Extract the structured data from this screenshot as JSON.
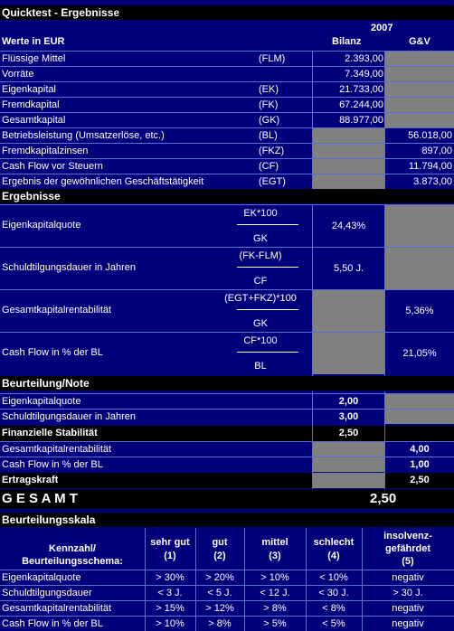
{
  "title": "Quicktest - Ergebnisse",
  "header": {
    "year": "2007",
    "werte": "Werte in EUR",
    "col_bilanz": "Bilanz",
    "col_guv": "G&V"
  },
  "rows": [
    {
      "label": "Flüssige Mittel",
      "abbr": "(FLM)",
      "bilanz": "2.393,00",
      "guv": ""
    },
    {
      "label": "Vorräte",
      "abbr": "",
      "bilanz": "7.349,00",
      "guv": ""
    },
    {
      "label": "Eigenkapital",
      "abbr": "(EK)",
      "bilanz": "21.733,00",
      "guv": ""
    },
    {
      "label": "Fremdkapital",
      "abbr": "(FK)",
      "bilanz": "67.244,00",
      "guv": ""
    },
    {
      "label": "Gesamtkapital",
      "abbr": "(GK)",
      "bilanz": "88.977,00",
      "guv": ""
    },
    {
      "label": "Betriebsleistung (Umsatzerlöse, etc.)",
      "abbr": "(BL)",
      "bilanz": "",
      "guv": "56.018,00"
    },
    {
      "label": "Fremdkapitalzinsen",
      "abbr": "(FKZ)",
      "bilanz": "",
      "guv": "897,00"
    },
    {
      "label": "Cash Flow vor Steuern",
      "abbr": "(CF)",
      "bilanz": "",
      "guv": "11.794,00"
    },
    {
      "label": "Ergebnis der gewöhnlichen Geschäftstätigkeit",
      "abbr": "(EGT)",
      "bilanz": "",
      "guv": "3.873,00"
    }
  ],
  "ergebnisse": {
    "title": "Ergebnisse",
    "items": [
      {
        "label": "Eigenkapitalquote",
        "num": "EK*100",
        "den": "GK",
        "bilanz": "24,43%",
        "guv": ""
      },
      {
        "label": "Schuldtilgungsdauer in Jahren",
        "num": "(FK-FLM)",
        "den": "CF",
        "bilanz": "5,50 J.",
        "guv": ""
      },
      {
        "label": "Gesamtkapitalrentabilität",
        "num": "(EGT+FKZ)*100",
        "den": "GK",
        "bilanz": "",
        "guv": "5,36%"
      },
      {
        "label": "Cash Flow in % der BL",
        "num": "CF*100",
        "den": "BL",
        "bilanz": "",
        "guv": "21,05%"
      }
    ]
  },
  "beurteilung": {
    "title": "Beurteilung/Note",
    "rows": [
      {
        "label": "Eigenkapitalquote",
        "bilanz": "2,00",
        "guv": ""
      },
      {
        "label": "Schuldtilgungsdauer in Jahren",
        "bilanz": "3,00",
        "guv": ""
      }
    ],
    "fin_label": "Finanzielle Stabilität",
    "fin_value": "2,50",
    "rows2": [
      {
        "label": "Gesamtkapitalrentabilität",
        "bilanz": "",
        "guv": "4,00"
      },
      {
        "label": "Cash Flow in % der BL",
        "bilanz": "",
        "guv": "1,00"
      }
    ],
    "ertrag_label": "Ertragskraft",
    "ertrag_value": "2,50"
  },
  "gesamt": {
    "label": "G E S A M T",
    "value": "2,50"
  },
  "skala": {
    "title": "Beurteilungsskala",
    "header": [
      "Kennzahl/",
      "Beurteilungsschema:"
    ],
    "cols": [
      {
        "l1": "sehr gut",
        "l2": "(1)"
      },
      {
        "l1": "gut",
        "l2": "(2)"
      },
      {
        "l1": "mittel",
        "l2": "(3)"
      },
      {
        "l1": "schlecht",
        "l2": "(4)"
      },
      {
        "l0": "insolvenz-",
        "l1": "gefährdet",
        "l2": "(5)"
      }
    ],
    "rows": [
      {
        "label": "Eigenkapitalquote",
        "v": [
          "> 30%",
          "> 20%",
          "> 10%",
          "< 10%",
          "negativ"
        ]
      },
      {
        "label": "Schuldtilgungsdauer",
        "v": [
          "< 3 J.",
          "< 5 J.",
          "< 12 J.",
          "< 30 J.",
          "> 30 J."
        ]
      },
      {
        "label": "Gesamtkapitalrentabilität",
        "v": [
          "> 15%",
          "> 12%",
          "> 8%",
          "< 8%",
          "negativ"
        ]
      },
      {
        "label": "Cash Flow in % der BL",
        "v": [
          "> 10%",
          "> 8%",
          "> 5%",
          "< 5%",
          "negativ"
        ]
      }
    ]
  }
}
